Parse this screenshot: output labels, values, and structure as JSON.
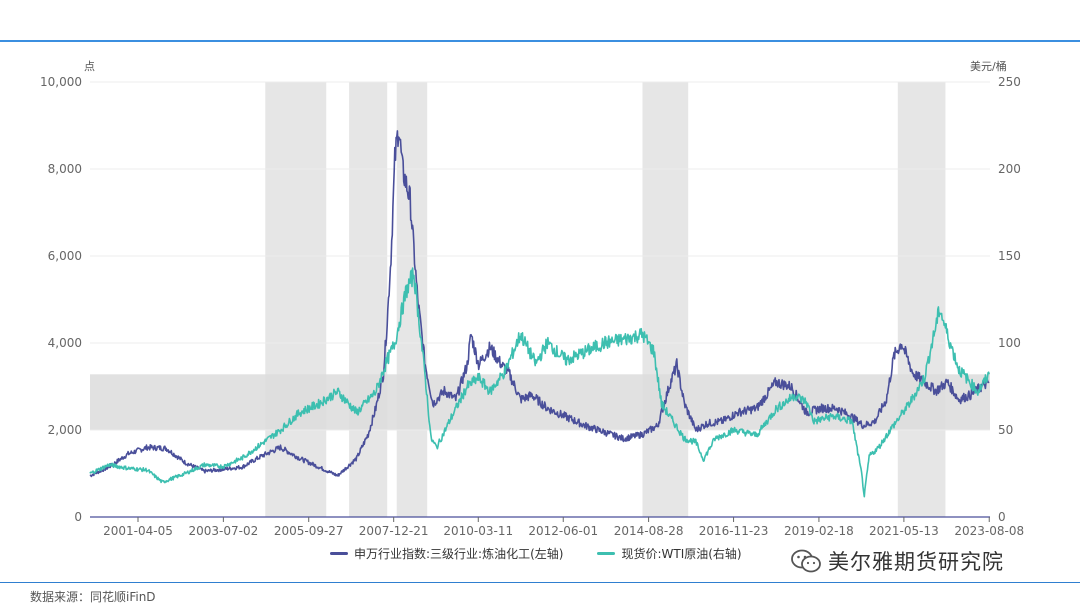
{
  "chart_data": {
    "type": "line",
    "left_unit": "点",
    "right_unit": "美元/桶",
    "left_axis": {
      "min": 0,
      "max": 10000,
      "ticks": [
        "0",
        "2,000",
        "4,000",
        "6,000",
        "8,000",
        "10,000"
      ],
      "tick_values": [
        0,
        2000,
        4000,
        6000,
        8000,
        10000
      ]
    },
    "right_axis": {
      "min": 0,
      "max": 250,
      "ticks": [
        "0",
        "50",
        "100",
        "150",
        "200",
        "250"
      ],
      "tick_values": [
        0,
        50,
        100,
        150,
        200,
        250
      ]
    },
    "x_range": [
      2000.0,
      2023.62
    ],
    "x_ticks": [
      {
        "label": "2001-04-05",
        "t": 2001.26
      },
      {
        "label": "2003-07-02",
        "t": 2003.5
      },
      {
        "label": "2005-09-27",
        "t": 2005.74
      },
      {
        "label": "2007-12-21",
        "t": 2007.97
      },
      {
        "label": "2010-03-11",
        "t": 2010.19
      },
      {
        "label": "2012-06-01",
        "t": 2012.42
      },
      {
        "label": "2014-08-28",
        "t": 2014.66
      },
      {
        "label": "2016-11-23",
        "t": 2016.89
      },
      {
        "label": "2019-02-18",
        "t": 2019.13
      },
      {
        "label": "2021-05-13",
        "t": 2021.36
      },
      {
        "label": "2023-08-08",
        "t": 2023.6
      }
    ],
    "shaded_periods": [
      [
        2004.6,
        2006.2
      ],
      [
        2006.8,
        2007.8
      ],
      [
        2008.05,
        2008.85
      ],
      [
        2014.5,
        2015.7
      ],
      [
        2021.2,
        2022.45
      ]
    ],
    "shaded_band_right_axis": [
      50,
      82
    ],
    "series": [
      {
        "name": "申万行业指数:三级行业:炼油化工(左轴)",
        "axis": "left",
        "color": "#4a4f9a",
        "x": [
          2000.0,
          2000.5,
          2001.0,
          2001.5,
          2002.0,
          2002.5,
          2003.0,
          2003.5,
          2004.0,
          2004.5,
          2005.0,
          2005.5,
          2006.0,
          2006.5,
          2007.0,
          2007.3,
          2007.5,
          2007.7,
          2007.8,
          2007.9,
          2008.0,
          2008.1,
          2008.2,
          2008.4,
          2008.6,
          2008.8,
          2009.0,
          2009.3,
          2009.6,
          2009.9,
          2010.0,
          2010.2,
          2010.5,
          2010.8,
          2011.0,
          2011.3,
          2011.6,
          2012.0,
          2012.5,
          2013.0,
          2013.5,
          2014.0,
          2014.5,
          2014.9,
          2015.2,
          2015.4,
          2015.6,
          2015.9,
          2016.2,
          2016.6,
          2017.0,
          2017.5,
          2018.0,
          2018.4,
          2018.8,
          2019.2,
          2019.6,
          2020.0,
          2020.3,
          2020.6,
          2020.9,
          2021.1,
          2021.3,
          2021.6,
          2021.9,
          2022.2,
          2022.5,
          2022.8,
          2023.1,
          2023.4,
          2023.6
        ],
        "values": [
          950,
          1150,
          1450,
          1600,
          1580,
          1250,
          1050,
          1100,
          1150,
          1400,
          1600,
          1350,
          1150,
          950,
          1350,
          1900,
          2500,
          3300,
          4500,
          6000,
          8200,
          9000,
          8000,
          7300,
          5000,
          3500,
          2600,
          2900,
          2700,
          3500,
          4200,
          3500,
          3900,
          3500,
          3300,
          2700,
          2800,
          2500,
          2300,
          2100,
          1950,
          1800,
          1900,
          2100,
          3000,
          3500,
          2600,
          2000,
          2150,
          2200,
          2400,
          2500,
          3100,
          3000,
          2400,
          2500,
          2500,
          2300,
          2100,
          2200,
          2700,
          3700,
          4000,
          3300,
          3100,
          2900,
          3100,
          2700,
          2800,
          3000,
          3100
        ]
      },
      {
        "name": "现货价:WTI原油(右轴)",
        "axis": "right",
        "color": "#3dbfb0",
        "x": [
          2000.0,
          2000.5,
          2001.0,
          2001.5,
          2001.9,
          2002.5,
          2003.0,
          2003.5,
          2004.0,
          2004.5,
          2005.0,
          2005.5,
          2006.0,
          2006.5,
          2007.0,
          2007.5,
          2007.8,
          2008.0,
          2008.3,
          2008.5,
          2008.6,
          2008.8,
          2008.95,
          2009.1,
          2009.5,
          2009.9,
          2010.2,
          2010.5,
          2010.9,
          2011.3,
          2011.7,
          2012.0,
          2012.5,
          2013.0,
          2013.5,
          2014.0,
          2014.5,
          2014.8,
          2015.0,
          2015.3,
          2015.6,
          2015.9,
          2016.1,
          2016.4,
          2016.9,
          2017.5,
          2018.0,
          2018.5,
          2018.8,
          2019.0,
          2019.5,
          2020.0,
          2020.25,
          2020.32,
          2020.45,
          2020.7,
          2021.0,
          2021.5,
          2021.9,
          2022.1,
          2022.3,
          2022.5,
          2022.8,
          2023.0,
          2023.3,
          2023.6
        ],
        "values": [
          25,
          30,
          28,
          27,
          20,
          25,
          30,
          29,
          34,
          42,
          50,
          60,
          65,
          72,
          60,
          72,
          90,
          100,
          130,
          140,
          120,
          80,
          45,
          40,
          58,
          75,
          80,
          72,
          84,
          105,
          88,
          100,
          90,
          95,
          100,
          102,
          105,
          95,
          65,
          55,
          45,
          43,
          33,
          45,
          50,
          47,
          62,
          70,
          66,
          55,
          58,
          55,
          25,
          12,
          35,
          40,
          50,
          65,
          80,
          100,
          120,
          105,
          85,
          80,
          72,
          82
        ]
      }
    ]
  },
  "legend": [
    {
      "label": "申万行业指数:三级行业:炼油化工(左轴)",
      "color": "#4a4f9a"
    },
    {
      "label": "现货价:WTI原油(右轴)",
      "color": "#3dbfb0"
    }
  ],
  "source": "数据来源：同花顺iFinD",
  "watermark": "美尔雅期货研究院"
}
